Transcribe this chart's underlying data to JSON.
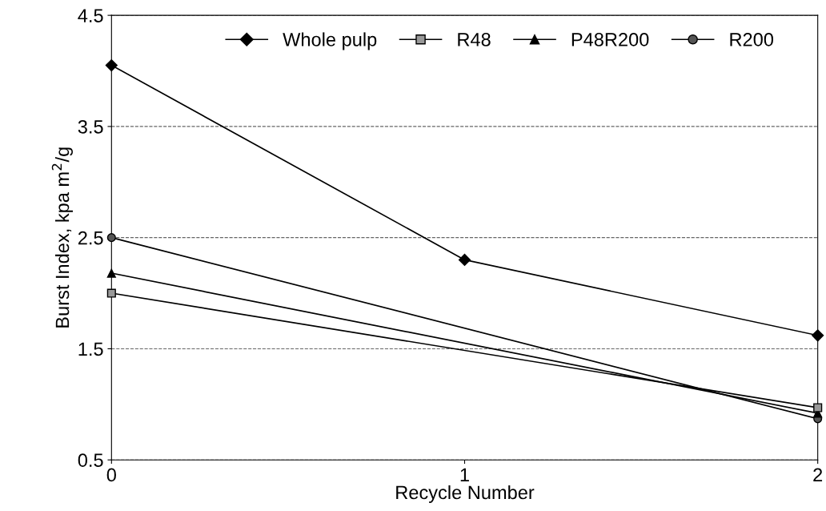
{
  "chart_data": {
    "type": "line",
    "xlabel": "Recycle Number",
    "ylabel": "Burst Index, kpa m$^{2}$/g",
    "x": [
      0,
      1,
      2
    ],
    "xlim": [
      0,
      2
    ],
    "xticks": [
      0,
      1,
      2
    ],
    "ylim": [
      0.5,
      4.5
    ],
    "yticks": [
      0.5,
      1.5,
      2.5,
      3.5,
      4.5
    ],
    "grid": "y",
    "legend": "top",
    "line_style": "solid",
    "series": [
      {
        "name": "Whole pulp",
        "color": "#000000",
        "marker": "diamond",
        "values": [
          4.05,
          2.3,
          1.62
        ]
      },
      {
        "name": "R48",
        "color": "#999999",
        "marker": "square",
        "values": [
          2.0,
          null,
          0.97
        ]
      },
      {
        "name": "P48R200",
        "color": "#000000",
        "marker": "triangle",
        "values": [
          2.18,
          null,
          0.92
        ]
      },
      {
        "name": "R200",
        "color": "#555555",
        "marker": "circle",
        "values": [
          2.5,
          null,
          0.87
        ]
      }
    ]
  }
}
